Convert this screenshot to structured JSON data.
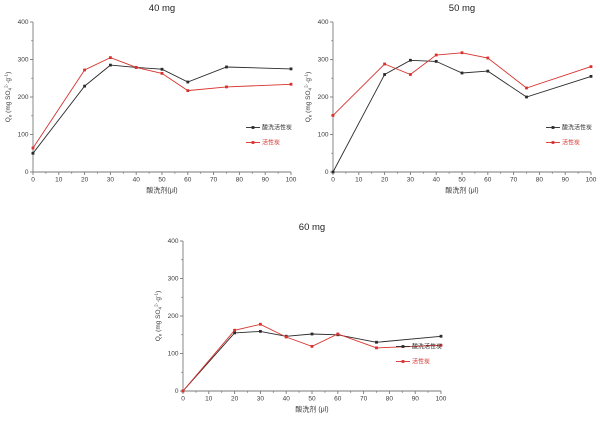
{
  "page": {
    "background": "#ffffff"
  },
  "style": {
    "axis_color": "#7a7a7a",
    "tick_text_color": "#3a3a3a",
    "title_color": "#222222",
    "series_black": "#2b2b2b",
    "series_red": "#d7322d"
  },
  "ylabel_rich": [
    {
      "t": "Q"
    },
    {
      "t": "e",
      "s": "sub"
    },
    {
      "t": " (mg SO"
    },
    {
      "t": "4",
      "s": "sub"
    },
    {
      "t": "2-",
      "s": "sup"
    },
    {
      "t": "·g"
    },
    {
      "t": "-1",
      "s": "sup"
    },
    {
      "t": ")"
    }
  ],
  "chart_data": [
    {
      "type": "line",
      "title": "40 mg",
      "xlabel": "酸洗剂(μl)",
      "ylabel": "Qe (mg SO4 2- · g-1)",
      "x": [
        0,
        20,
        30,
        40,
        50,
        60,
        75,
        100
      ],
      "series": [
        {
          "name": "酸洗活性炭",
          "color": "#2b2b2b",
          "values": [
            50,
            229,
            285,
            279,
            274,
            240,
            280,
            275
          ]
        },
        {
          "name": "活性炭",
          "color": "#d7322d",
          "values": [
            64,
            272,
            305,
            279,
            263,
            217,
            227,
            234
          ]
        }
      ],
      "xlim": [
        0,
        100
      ],
      "ylim": [
        0,
        400
      ],
      "xticks": [
        0,
        10,
        20,
        30,
        40,
        50,
        60,
        70,
        80,
        90,
        100
      ],
      "yticks": [
        0,
        100,
        200,
        300,
        400
      ],
      "x_minor_step": 5,
      "y_minor_step": 50,
      "grid": false,
      "legend_position": "right-middle"
    },
    {
      "type": "line",
      "title": "50 mg",
      "xlabel": "酸洗剂 (μl)",
      "ylabel": "Qe (mg SO4 2- · g-1)",
      "x": [
        0,
        20,
        30,
        40,
        50,
        60,
        75,
        100
      ],
      "series": [
        {
          "name": "酸洗活性炭",
          "color": "#2b2b2b",
          "values": [
            0,
            260,
            298,
            295,
            264,
            269,
            200,
            255
          ]
        },
        {
          "name": "活性炭",
          "color": "#d7322d",
          "values": [
            151,
            288,
            260,
            312,
            318,
            304,
            224,
            281
          ]
        }
      ],
      "xlim": [
        0,
        100
      ],
      "ylim": [
        0,
        400
      ],
      "xticks": [
        0,
        10,
        20,
        30,
        40,
        50,
        60,
        70,
        80,
        90,
        100
      ],
      "yticks": [
        0,
        100,
        200,
        300,
        400
      ],
      "x_minor_step": 5,
      "y_minor_step": 50,
      "grid": false,
      "legend_position": "right-middle"
    },
    {
      "type": "line",
      "title": "60 mg",
      "xlabel": "酸洗剂 (μl)",
      "ylabel": "Qe (mg SO4 2- · g-1)",
      "x": [
        0,
        20,
        30,
        40,
        50,
        60,
        75,
        100
      ],
      "series": [
        {
          "name": "酸洗活性炭",
          "color": "#2b2b2b",
          "values": [
            0,
            155,
            159,
            146,
            152,
            150,
            130,
            146
          ]
        },
        {
          "name": "活性炭",
          "color": "#d7322d",
          "values": [
            0,
            162,
            178,
            144,
            119,
            152,
            115,
            122
          ]
        }
      ],
      "xlim": [
        0,
        100
      ],
      "ylim": [
        0,
        400
      ],
      "xticks": [
        0,
        10,
        20,
        30,
        40,
        50,
        60,
        70,
        80,
        90,
        100
      ],
      "yticks": [
        0,
        100,
        200,
        300,
        400
      ],
      "x_minor_step": 5,
      "y_minor_step": 50,
      "grid": false,
      "legend_position": "right-middle"
    }
  ]
}
